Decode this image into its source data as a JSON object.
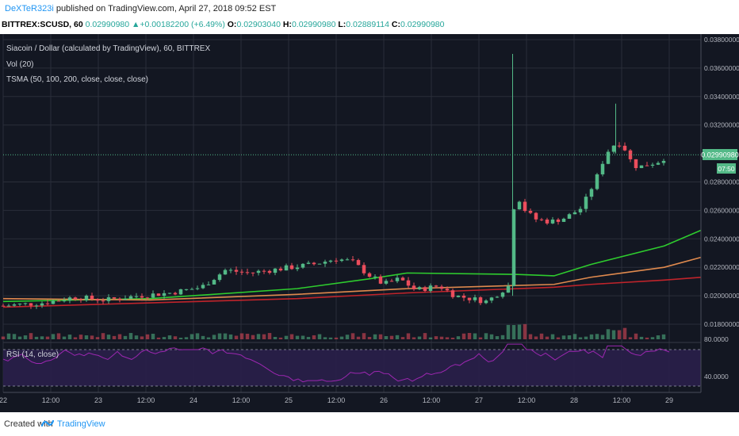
{
  "header": {
    "author": "DeXTeR323i",
    "published": " published on TradingView.com, April 27, 2018 09:52 EST",
    "symbol_line": "BITTREX:SCUSD, 60",
    "last": "0.02990980",
    "change": "+0.00182200 (+6.49%)",
    "o_label": "O:",
    "o": "0.02903040",
    "h_label": "H:",
    "h": "0.02990980",
    "l_label": "L:",
    "l": "0.02889114",
    "c_label": "C:",
    "c": "0.02990980"
  },
  "legend": {
    "title": "Siacoin / Dollar (calculated by TradingView), 60, BITTREX",
    "vol": "Vol (20)",
    "tsma": "TSMA (50, 100, 200, close, close, close)",
    "rsi": "RSI (14, close)"
  },
  "price_axis": {
    "ticks": [
      "0.03800000",
      "0.03600000",
      "0.03400000",
      "0.03200000",
      "0.02800000",
      "0.02600000",
      "0.02400000",
      "0.02200000",
      "0.02000000",
      "0.01800000"
    ],
    "tick_values": [
      0.038,
      0.036,
      0.034,
      0.032,
      0.028,
      0.026,
      0.024,
      0.022,
      0.02,
      0.018
    ],
    "current_label": "0.02990980",
    "current_value": 0.0299098,
    "countdown": "07:50"
  },
  "rsi_axis": {
    "ticks": [
      "80.0000",
      "40.0000"
    ],
    "tick_values": [
      80,
      40
    ]
  },
  "time_axis": {
    "labels": [
      "22",
      "12:00",
      "23",
      "12:00",
      "24",
      "12:00",
      "25",
      "12:00",
      "26",
      "12:00",
      "27",
      "12:00",
      "28",
      "12:00",
      "29"
    ]
  },
  "footer": {
    "created": "Created with",
    "brand": "TradingView"
  },
  "colors": {
    "bg": "#131722",
    "grid": "#2a2e39",
    "up": "#53b987",
    "down": "#eb4d5c",
    "ma50": "#2ecc2e",
    "ma100": "#e08a4e",
    "ma200": "#c0242b",
    "rsi": "#9c27b0",
    "rsi_band": "#2a1f4a",
    "axis_text": "#b2b5be"
  },
  "chart_data": {
    "type": "candlestick",
    "x_range_hours": [
      0,
      176
    ],
    "ylim": [
      0.0175,
      0.0385
    ],
    "candles": [],
    "ma_series": [
      {
        "name": "TSMA 50",
        "points": [
          [
            0,
            0.0196
          ],
          [
            40,
            0.0198
          ],
          [
            80,
            0.0205
          ],
          [
            100,
            0.0212
          ],
          [
            110,
            0.0216
          ],
          [
            140,
            0.0215
          ],
          [
            150,
            0.0214
          ],
          [
            160,
            0.0222
          ],
          [
            180,
            0.0235
          ],
          [
            190,
            0.0246
          ]
        ]
      },
      {
        "name": "TSMA 100",
        "points": [
          [
            0,
            0.0198
          ],
          [
            40,
            0.0197
          ],
          [
            80,
            0.0201
          ],
          [
            110,
            0.0205
          ],
          [
            150,
            0.0208
          ],
          [
            160,
            0.0213
          ],
          [
            180,
            0.022
          ],
          [
            190,
            0.0227
          ]
        ]
      },
      {
        "name": "TSMA 200",
        "points": [
          [
            0,
            0.0192
          ],
          [
            40,
            0.0195
          ],
          [
            80,
            0.0198
          ],
          [
            110,
            0.0202
          ],
          [
            150,
            0.0206
          ],
          [
            160,
            0.0208
          ],
          [
            180,
            0.0211
          ],
          [
            190,
            0.0213
          ]
        ]
      }
    ]
  }
}
